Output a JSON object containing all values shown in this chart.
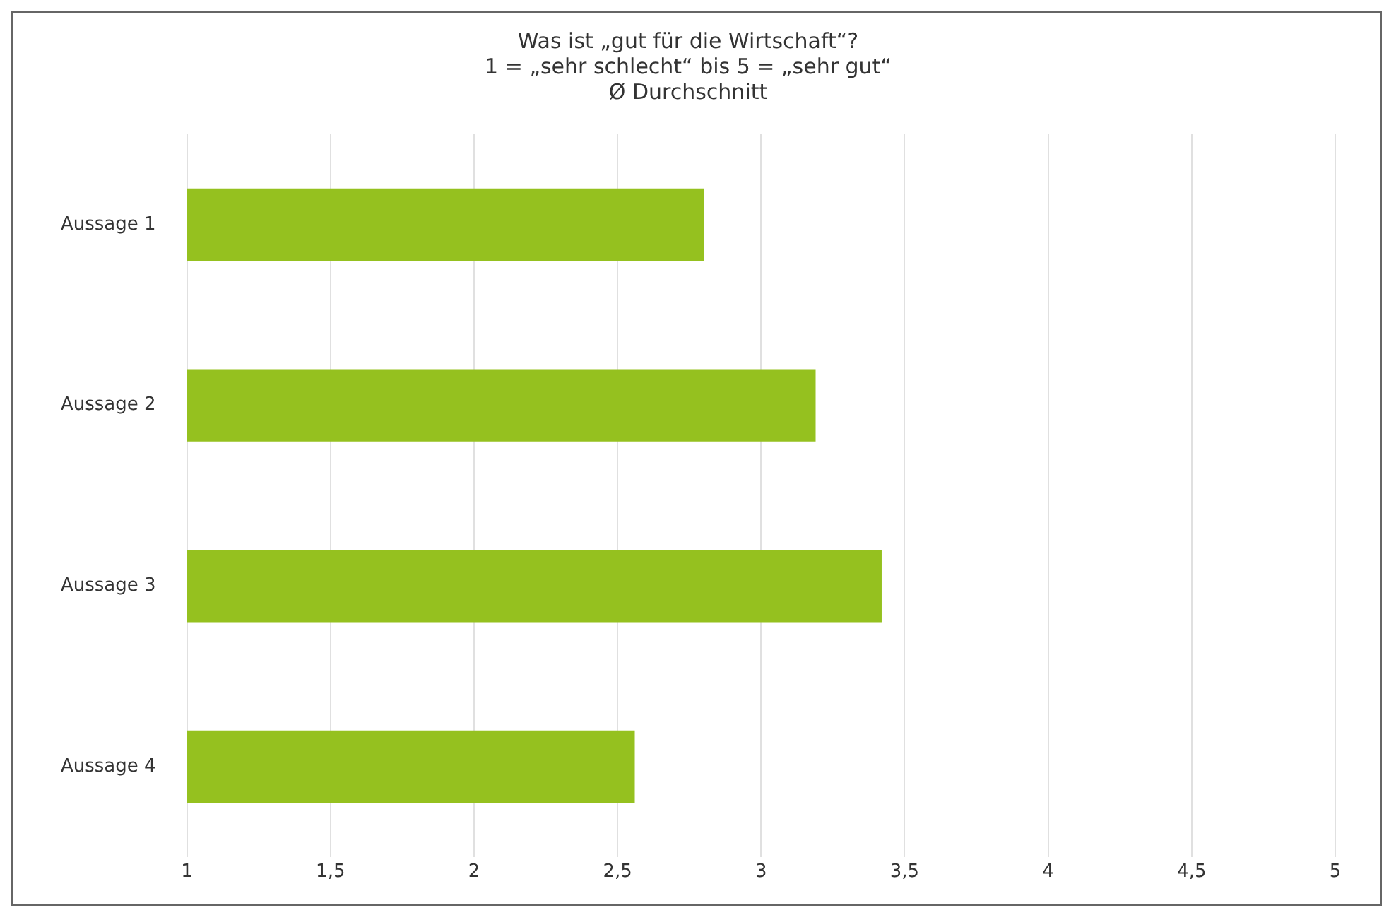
{
  "chart_data": {
    "type": "bar",
    "orientation": "horizontal",
    "title": "Was ist „gut für die Wirtschaft“?\n1 = „sehr schlecht“ bis 5 = „sehr gut“\nØ Durchschnitt",
    "categories": [
      "Aussage 1",
      "Aussage 2",
      "Aussage 3",
      "Aussage 4"
    ],
    "values": [
      2.8,
      3.19,
      3.42,
      2.56
    ],
    "color": "#95c11f",
    "xlim": [
      1,
      5
    ],
    "xticks": [
      1,
      {
        "value": 1.5,
        "label": "1,5"
      },
      2,
      {
        "value": 2.5,
        "label": "2,5"
      },
      3,
      {
        "value": 3.5,
        "label": "3,5"
      },
      4,
      {
        "value": 4.5,
        "label": "4,5"
      },
      5
    ],
    "grid": "x",
    "legend": false
  }
}
